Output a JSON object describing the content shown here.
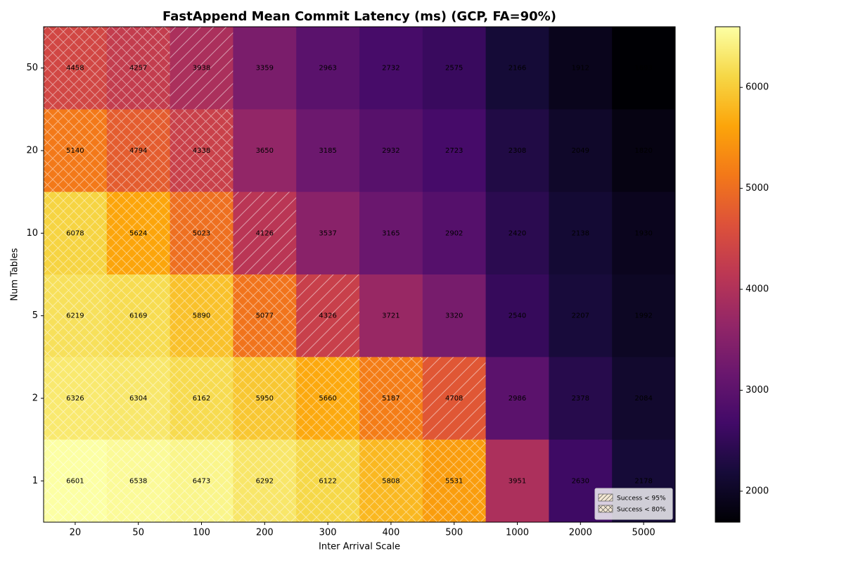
{
  "chart_data": {
    "type": "heatmap",
    "title": "FastAppend Mean Commit Latency (ms) (GCP, FA=90%)",
    "x_label": "Inter Arrival Scale",
    "y_label": "Num Tables",
    "x_categories": [
      "20",
      "50",
      "100",
      "200",
      "300",
      "400",
      "500",
      "1000",
      "2000",
      "5000"
    ],
    "y_categories": [
      "50",
      "20",
      "10",
      "5",
      "2",
      "1"
    ],
    "z": [
      [
        4458,
        4257,
        3938,
        3359,
        2963,
        2732,
        2575,
        2166,
        1912,
        1693
      ],
      [
        5140,
        4794,
        4338,
        3650,
        3185,
        2932,
        2723,
        2308,
        2049,
        1820
      ],
      [
        6078,
        5624,
        5023,
        4126,
        3537,
        3165,
        2902,
        2420,
        2138,
        1930
      ],
      [
        6219,
        6169,
        5890,
        5077,
        4326,
        3721,
        3320,
        2540,
        2207,
        1992
      ],
      [
        6326,
        6304,
        6162,
        5950,
        5660,
        5187,
        4708,
        2986,
        2378,
        2084
      ],
      [
        6601,
        6538,
        6473,
        6292,
        6122,
        5808,
        5531,
        3951,
        2630,
        2178
      ]
    ],
    "hatch": [
      [
        "x",
        "x",
        "//",
        null,
        null,
        null,
        null,
        null,
        null,
        null
      ],
      [
        "x",
        "x",
        "x",
        null,
        null,
        null,
        null,
        null,
        null,
        null
      ],
      [
        "x",
        "x",
        "x",
        "//",
        null,
        null,
        null,
        null,
        null,
        null
      ],
      [
        "x",
        "x",
        "x",
        "x",
        "//",
        null,
        null,
        null,
        null,
        null
      ],
      [
        "x",
        "x",
        "x",
        "x",
        "x",
        "x",
        "//",
        null,
        null,
        null
      ],
      [
        "x",
        "x",
        "x",
        "x",
        "x",
        "x",
        "x",
        null,
        null,
        null
      ]
    ],
    "zlim": [
      1693,
      6601
    ],
    "colorbar_ticks": [
      2000,
      3000,
      4000,
      5000,
      6000
    ],
    "colormap": [
      "#000004",
      "#160b39",
      "#420a68",
      "#6a176e",
      "#932667",
      "#bc3754",
      "#dd513a",
      "#f37819",
      "#fca50a",
      "#f6d746",
      "#fcffa4"
    ],
    "legend": {
      "position": "lower right",
      "entries": [
        {
          "label": "Success < 95%",
          "hatch": "//"
        },
        {
          "label": "Success < 80%",
          "hatch": "x"
        }
      ]
    }
  }
}
